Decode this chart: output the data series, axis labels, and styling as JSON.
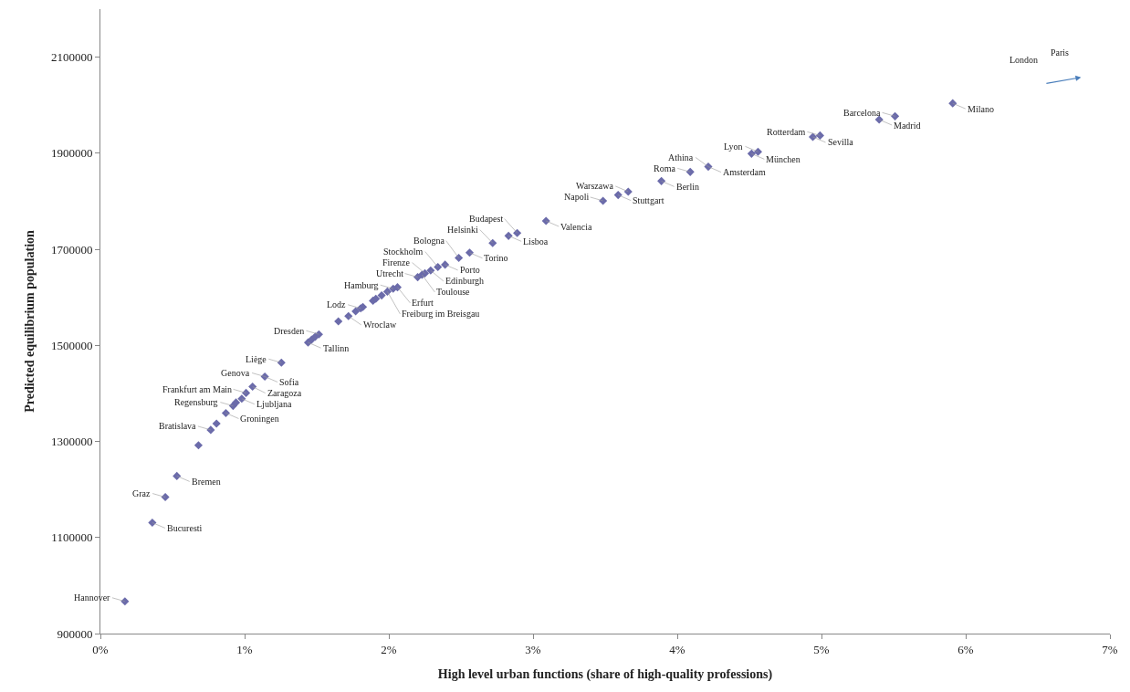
{
  "chart_data": {
    "type": "scatter",
    "xlabel": "High level urban functions (share of high-quality professions)",
    "ylabel": "Predicted equilibrium population",
    "x": [
      0.17,
      0.36,
      0.45,
      0.53,
      0.68,
      0.765,
      0.805,
      0.87,
      0.92,
      0.94,
      0.98,
      1.01,
      1.055,
      1.14,
      1.255,
      1.44,
      1.465,
      1.49,
      1.515,
      1.65,
      1.72,
      1.77,
      1.805,
      1.82,
      1.89,
      1.91,
      1.95,
      1.99,
      2.03,
      2.06,
      2.2,
      2.23,
      2.25,
      2.29,
      2.34,
      2.39,
      2.485,
      2.56,
      2.72,
      2.83,
      2.89,
      3.09,
      3.485,
      3.59,
      3.66,
      3.89,
      4.09,
      4.215,
      4.515,
      4.56,
      4.94,
      4.99,
      5.4,
      5.51,
      5.91
    ],
    "values": [
      967000,
      1131000,
      1184000,
      1228000,
      1292000,
      1324000,
      1337000,
      1359000,
      1374000,
      1381000,
      1389000,
      1401000,
      1414000,
      1435000,
      1464000,
      1506000,
      1512000,
      1518000,
      1523000,
      1550000,
      1561000,
      1571000,
      1577000,
      1580000,
      1593000,
      1597000,
      1604000,
      1612000,
      1618000,
      1621000,
      1642000,
      1647000,
      1650000,
      1656000,
      1663000,
      1668000,
      1682000,
      1693000,
      1713000,
      1728000,
      1734000,
      1759000,
      1801000,
      1813000,
      1820000,
      1842000,
      1861000,
      1872000,
      1899000,
      1903000,
      1934000,
      1937000,
      1970000,
      1977000,
      2004000
    ],
    "color": "#6b6baa",
    "marker": "diamond",
    "xlim": [
      0,
      7
    ],
    "xticks": [
      {
        "value": 0,
        "label": "0%"
      },
      {
        "value": 1,
        "label": "1%"
      },
      {
        "value": 2,
        "label": "2%"
      },
      {
        "value": 3,
        "label": "3%"
      },
      {
        "value": 4,
        "label": "4%"
      },
      {
        "value": 5,
        "label": "5%"
      },
      {
        "value": 6,
        "label": "6%"
      },
      {
        "value": 7,
        "label": "7%"
      }
    ],
    "ylim": [
      900000,
      2200000
    ],
    "yticks": [
      900000,
      1100000,
      1300000,
      1500000,
      1700000,
      1900000,
      2100000
    ],
    "annotations": [
      {
        "text": "Hannover",
        "x": 0.17,
        "y": 967000
      },
      {
        "text": "Bucuresti",
        "x": 0.36,
        "y": 1131000
      },
      {
        "text": "Graz",
        "x": 0.45,
        "y": 1184000
      },
      {
        "text": "Bremen",
        "x": 0.53,
        "y": 1228000
      },
      {
        "text": "Bratislava",
        "x": 0.765,
        "y": 1324000
      },
      {
        "text": "Groningen",
        "x": 0.87,
        "y": 1359000
      },
      {
        "text": "Regensburg",
        "x": 0.92,
        "y": 1374000
      },
      {
        "text": "Ljubljana",
        "x": 0.98,
        "y": 1389000
      },
      {
        "text": "Frankfurt am Main",
        "x": 1.01,
        "y": 1401000
      },
      {
        "text": "Zaragoza",
        "x": 1.055,
        "y": 1414000
      },
      {
        "text": "Genova",
        "x": 1.14,
        "y": 1435000
      },
      {
        "text": "Sofia",
        "x": 1.14,
        "y": 1435000
      },
      {
        "text": "Liège",
        "x": 1.255,
        "y": 1464000
      },
      {
        "text": "Tallinn",
        "x": 1.44,
        "y": 1506000
      },
      {
        "text": "Dresden",
        "x": 1.515,
        "y": 1523000
      },
      {
        "text": "Wroclaw",
        "x": 1.72,
        "y": 1561000
      },
      {
        "text": "Lodz",
        "x": 1.805,
        "y": 1577000
      },
      {
        "text": "Freiburg im Breisgau",
        "x": 1.99,
        "y": 1612000
      },
      {
        "text": "Hamburg",
        "x": 2.03,
        "y": 1618000
      },
      {
        "text": "Erfurt",
        "x": 2.06,
        "y": 1621000
      },
      {
        "text": "Utrecht",
        "x": 2.2,
        "y": 1642000
      },
      {
        "text": "Toulouse",
        "x": 2.23,
        "y": 1647000
      },
      {
        "text": "Firenze",
        "x": 2.25,
        "y": 1650000
      },
      {
        "text": "Edinburgh",
        "x": 2.29,
        "y": 1656000
      },
      {
        "text": "Stockholm",
        "x": 2.34,
        "y": 1663000
      },
      {
        "text": "Porto",
        "x": 2.39,
        "y": 1668000
      },
      {
        "text": "Bologna",
        "x": 2.485,
        "y": 1682000
      },
      {
        "text": "Torino",
        "x": 2.56,
        "y": 1693000
      },
      {
        "text": "Helsinki",
        "x": 2.72,
        "y": 1713000
      },
      {
        "text": "Lisboa",
        "x": 2.83,
        "y": 1728000
      },
      {
        "text": "Budapest",
        "x": 2.89,
        "y": 1734000
      },
      {
        "text": "Valencia",
        "x": 3.09,
        "y": 1759000
      },
      {
        "text": "Napoli",
        "x": 3.485,
        "y": 1801000
      },
      {
        "text": "Stuttgart",
        "x": 3.59,
        "y": 1813000
      },
      {
        "text": "Warszawa",
        "x": 3.66,
        "y": 1820000
      },
      {
        "text": "Berlin",
        "x": 3.89,
        "y": 1842000
      },
      {
        "text": "Roma",
        "x": 4.09,
        "y": 1861000
      },
      {
        "text": "Amsterdam",
        "x": 4.215,
        "y": 1872000
      },
      {
        "text": "Athina",
        "x": 4.215,
        "y": 1872000
      },
      {
        "text": "München",
        "x": 4.515,
        "y": 1899000
      },
      {
        "text": "Lyon",
        "x": 4.56,
        "y": 1903000
      },
      {
        "text": "Sevilla",
        "x": 4.94,
        "y": 1934000
      },
      {
        "text": "Rotterdam",
        "x": 4.99,
        "y": 1937000
      },
      {
        "text": "Madrid",
        "x": 5.4,
        "y": 1970000
      },
      {
        "text": "Barcelona",
        "x": 5.51,
        "y": 1977000
      },
      {
        "text": "Milano",
        "x": 5.91,
        "y": 2004000
      },
      "London",
      "Paris"
    ]
  }
}
